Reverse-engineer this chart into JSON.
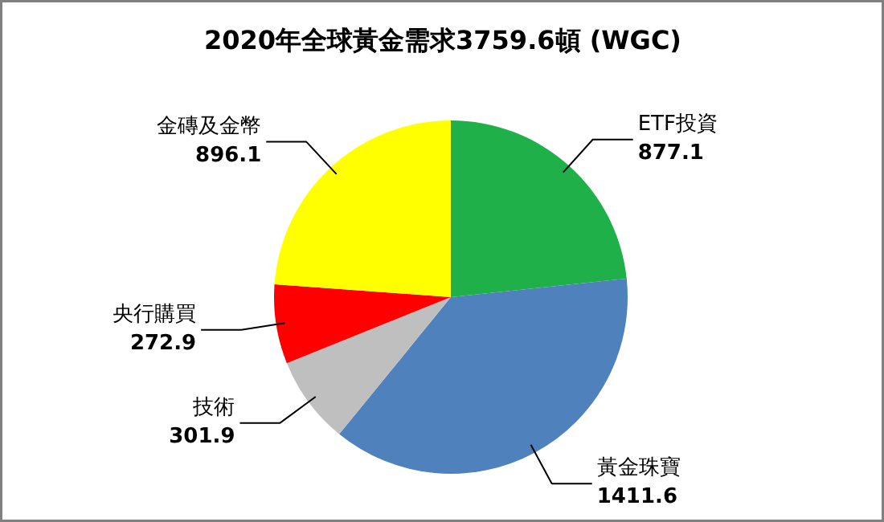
{
  "chart_data": {
    "type": "pie",
    "title": "2020年全球黃金需求3759.6頓 (WGC)",
    "categories": [
      "ETF投資",
      "黃金珠寶",
      "技術",
      "央行購買",
      "金磚及金幣"
    ],
    "values": [
      877.1,
      1411.6,
      301.9,
      272.9,
      896.1
    ],
    "colors": [
      "#1fb04a",
      "#4f81bd",
      "#bfbfbf",
      "#ff0000",
      "#ffff00"
    ],
    "data_labels": true
  }
}
